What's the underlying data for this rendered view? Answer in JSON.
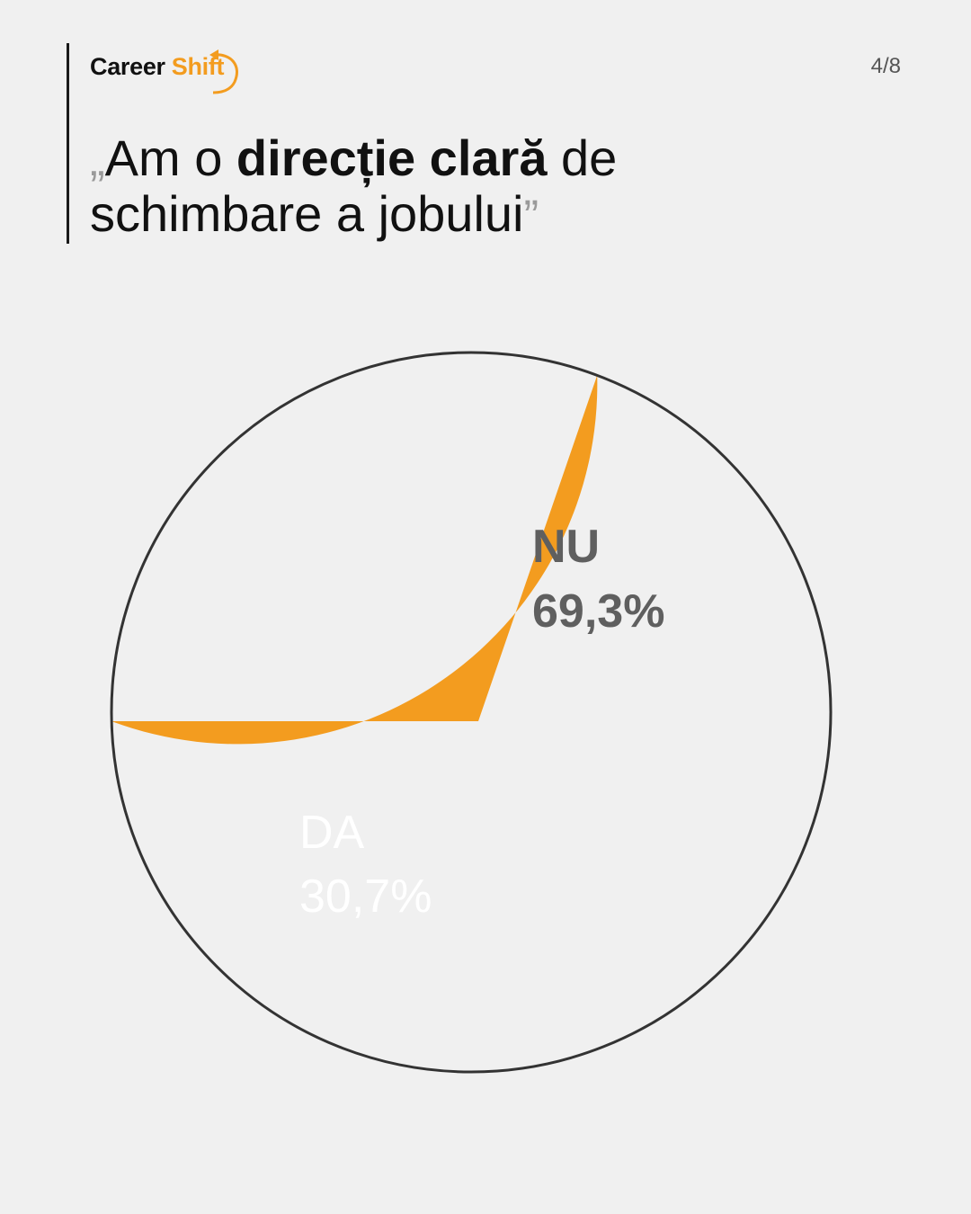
{
  "brand": {
    "career": "Career",
    "shift": "Shift"
  },
  "page_indicator": "4/8",
  "title": {
    "open_quote": "„",
    "part1": "Am o ",
    "bold": "direcție clară",
    "part2": " de",
    "line2": "schimbare a jobului",
    "close_quote": "”"
  },
  "colors": {
    "accent": "#f39c1f",
    "background": "#f0f0f0",
    "outline": "#333333"
  },
  "chart_data": {
    "type": "pie",
    "slices": [
      {
        "label": "NU",
        "value": 69.3,
        "value_label": "69,3%",
        "color": "#f0f0f0"
      },
      {
        "label": "DA",
        "value": 30.7,
        "value_label": "30,7%",
        "color": "#f39c1f"
      }
    ]
  }
}
